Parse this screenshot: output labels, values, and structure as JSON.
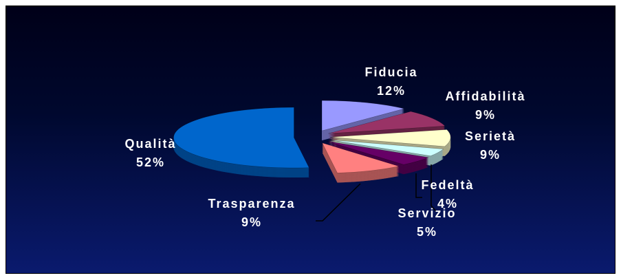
{
  "chart_data": {
    "type": "pie",
    "categories": [
      "Fiducia",
      "Affidabilità",
      "Serietà",
      "Fedeltà",
      "Servizio",
      "Trasparenza",
      "Qualità"
    ],
    "values": [
      12,
      9,
      9,
      4,
      5,
      9,
      52
    ],
    "value_labels": [
      "12%",
      "9%",
      "9%",
      "4%",
      "5%",
      "9%",
      "52%"
    ],
    "colors": [
      "#9999ff",
      "#993366",
      "#ffffcc",
      "#ccffff",
      "#660066",
      "#ff8080",
      "#0066cc"
    ]
  }
}
